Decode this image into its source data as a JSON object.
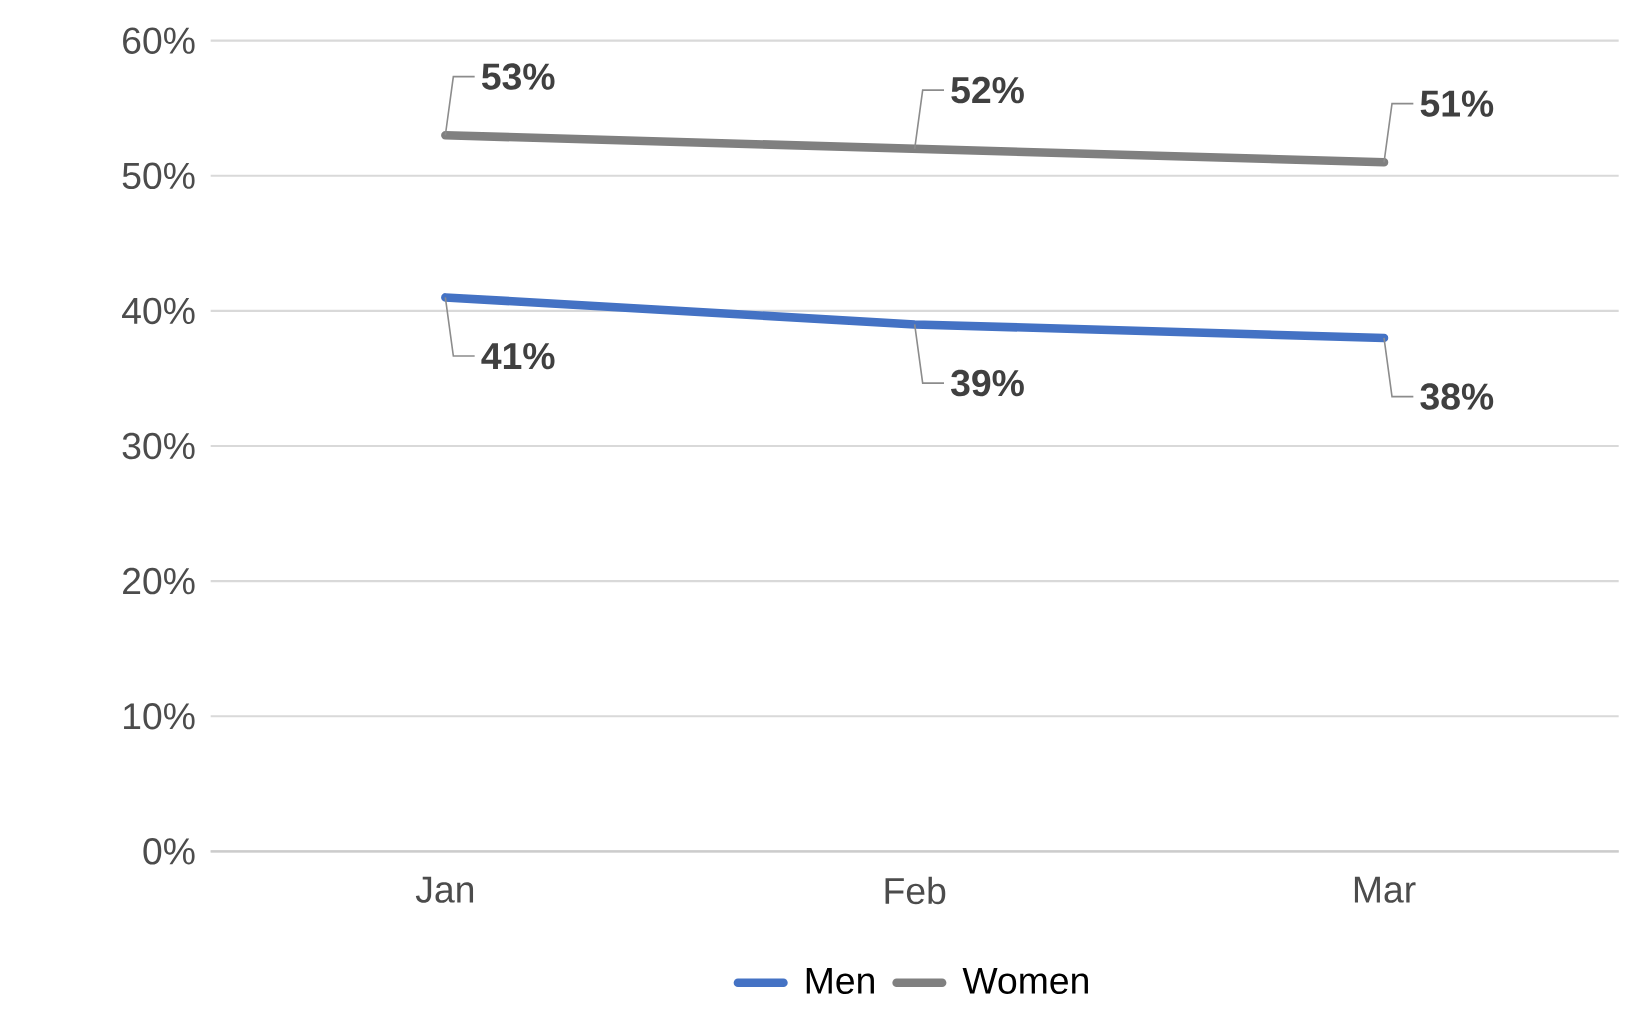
{
  "chart_data": {
    "type": "line",
    "categories": [
      "Jan",
      "Feb",
      "Mar"
    ],
    "series": [
      {
        "name": "Men",
        "color": "#4472c4",
        "values": [
          41,
          39,
          38
        ],
        "value_labels": [
          "41%",
          "39%",
          "38%"
        ]
      },
      {
        "name": "Women",
        "color": "#808080",
        "values": [
          53,
          52,
          51
        ],
        "value_labels": [
          "53%",
          "52%",
          "51%"
        ]
      }
    ],
    "ylim": [
      0,
      60
    ],
    "yticks": [
      {
        "value": 0,
        "label": "0%"
      },
      {
        "value": 10,
        "label": "10%"
      },
      {
        "value": 20,
        "label": "20%"
      },
      {
        "value": 30,
        "label": "30%"
      },
      {
        "value": 40,
        "label": "40%"
      },
      {
        "value": 50,
        "label": "50%"
      },
      {
        "value": 60,
        "label": "60%"
      }
    ],
    "grid": "y",
    "legend": "bottom",
    "marker": "none",
    "line_style": "solid"
  }
}
